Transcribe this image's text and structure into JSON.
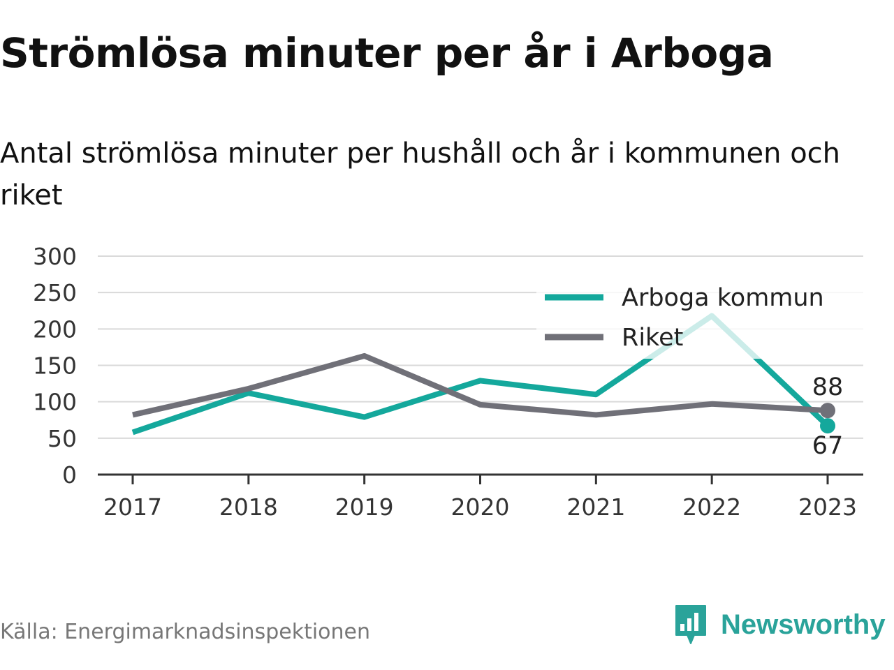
{
  "title": "Strömlösa minuter per år i Arboga",
  "subtitle": "Antal strömlösa minuter per hushåll och år i kommunen och riket",
  "source": "Källa: Energimarknadsinspektionen",
  "brand": {
    "name": "Newsworthy",
    "icon": "newsworthy-logo-icon",
    "color": "#2aa39a"
  },
  "chart_data": {
    "type": "line",
    "x": [
      "2017",
      "2018",
      "2019",
      "2020",
      "2021",
      "2022",
      "2023"
    ],
    "series": [
      {
        "name": "Arboga kommun",
        "color": "#14a89c",
        "values": [
          58,
          112,
          79,
          129,
          110,
          218,
          67
        ]
      },
      {
        "name": "Riket",
        "color": "#707078",
        "values": [
          82,
          118,
          163,
          96,
          82,
          97,
          88
        ]
      }
    ],
    "ylim": [
      0,
      300
    ],
    "yticks": [
      0,
      50,
      100,
      150,
      200,
      250,
      300
    ],
    "end_labels": [
      "67",
      "88"
    ],
    "grid": true,
    "legend": "top-right"
  }
}
